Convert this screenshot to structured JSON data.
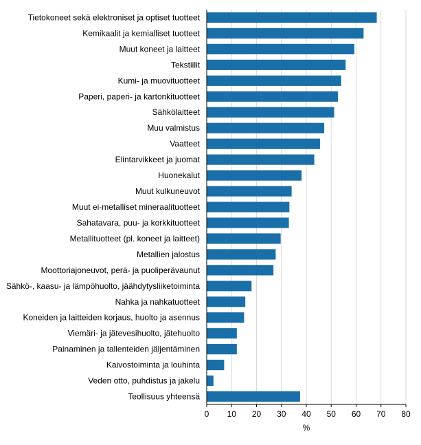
{
  "colors": {
    "bar": "#1a6fa8",
    "grid": "#d9d9d9",
    "axis": "#000000",
    "text": "#000000"
  },
  "chart_data": {
    "type": "bar",
    "orientation": "horizontal",
    "title": "",
    "xlabel": "%",
    "ylabel": "",
    "xlim": [
      0,
      80
    ],
    "xticks": [
      0,
      10,
      20,
      30,
      40,
      50,
      60,
      70,
      80
    ],
    "grid": "vertical",
    "categories": [
      "Tietokoneet sekä elektroniset ja optiset tuotteet",
      "Kemikaalit ja kemialliset tuotteet",
      "Muut koneet ja laitteet",
      "Tekstiilit",
      "Kumi- ja muovituotteet",
      "Paperi, paperi- ja kartonkituotteet",
      "Sähkölaitteet",
      "Muu valmistus",
      "Vaatteet",
      "Elintarvikkeet ja juomat",
      "Huonekalut",
      "Muut kulkuneuvot",
      "Muut ei-metalliset mineraalituotteet",
      "Sahatavara, puu- ja korkkituotteet",
      "Metallituotteet (pl. koneet ja laitteet)",
      "Metallien jalostus",
      "Moottoriajoneuvot, perä- ja puoliperävaunut",
      "Sähkö-, kaasu- ja lämpöhuolto, jäähdytysliiketoiminta",
      "Nahka ja nahkatuotteet",
      "Koneiden ja laitteiden korjaus, huolto ja asennus",
      "Viemäri- ja jätevesihuolto, jätehuolto",
      "Painaminen ja tallenteiden jäljentäminen",
      "Kaivostoiminta ja louhinta",
      "Veden otto, puhdistus ja jakelu",
      "Teollisuus yhteensä"
    ],
    "values": [
      68.3,
      63,
      59.3,
      55.8,
      54,
      52.7,
      51.2,
      47.2,
      45.5,
      43.2,
      38.1,
      34.1,
      33.2,
      33,
      29.7,
      27.7,
      26.8,
      18,
      15.5,
      15,
      12.1,
      12.1,
      7,
      2.7,
      37.5
    ]
  }
}
